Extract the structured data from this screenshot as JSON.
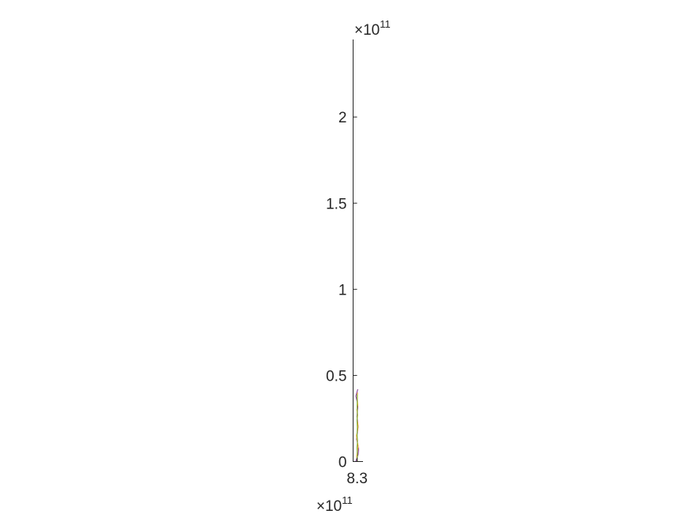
{
  "chart_data": {
    "type": "line",
    "title": "",
    "xlabel": "",
    "ylabel": "",
    "y_axis": {
      "multiplier_label": "×10",
      "exponent": "11",
      "tick_values": [
        0,
        0.5,
        1,
        1.5,
        2
      ],
      "tick_labels": [
        "0",
        "0.5",
        "1",
        "1.5",
        "2"
      ],
      "ylim": [
        0,
        2.45
      ]
    },
    "x_axis": {
      "multiplier_label": "×10",
      "exponent": "11",
      "tick_values": [
        8.3
      ],
      "tick_labels": [
        "8.3"
      ],
      "xlim": [
        8.2965,
        8.305
      ]
    },
    "grid": false,
    "legend": "none",
    "series": [
      {
        "color": "#7E2F8E",
        "x": [
          8.2988,
          8.3008,
          8.3012,
          8.3005,
          8.2995,
          8.3002,
          8.3008,
          8.3004,
          8.2998,
          8.3001,
          8.3006,
          8.2999,
          8.2989,
          8.3005
        ],
        "y": [
          0.0,
          0.04,
          0.07,
          0.1,
          0.13,
          0.17,
          0.2,
          0.23,
          0.26,
          0.29,
          0.32,
          0.35,
          0.38,
          0.42
        ]
      },
      {
        "color": "#EDB120",
        "x": [
          8.3002,
          8.2996,
          8.3001,
          8.3009,
          8.3,
          8.2994,
          8.3003,
          8.3008,
          8.2999,
          8.3004,
          8.2997,
          8.3005,
          8.3001,
          8.3003
        ],
        "y": [
          0.0,
          0.03,
          0.06,
          0.09,
          0.12,
          0.15,
          0.18,
          0.21,
          0.24,
          0.27,
          0.3,
          0.33,
          0.36,
          0.4
        ]
      },
      {
        "color": "#77AC30",
        "x": [
          8.2999,
          8.3002,
          8.2998,
          8.3003,
          8.2999,
          8.3001,
          8.2998,
          8.3002,
          8.2999,
          8.3001,
          8.3
        ],
        "y": [
          0.0,
          0.04,
          0.08,
          0.12,
          0.16,
          0.2,
          0.24,
          0.28,
          0.32,
          0.36,
          0.39
        ]
      }
    ]
  }
}
